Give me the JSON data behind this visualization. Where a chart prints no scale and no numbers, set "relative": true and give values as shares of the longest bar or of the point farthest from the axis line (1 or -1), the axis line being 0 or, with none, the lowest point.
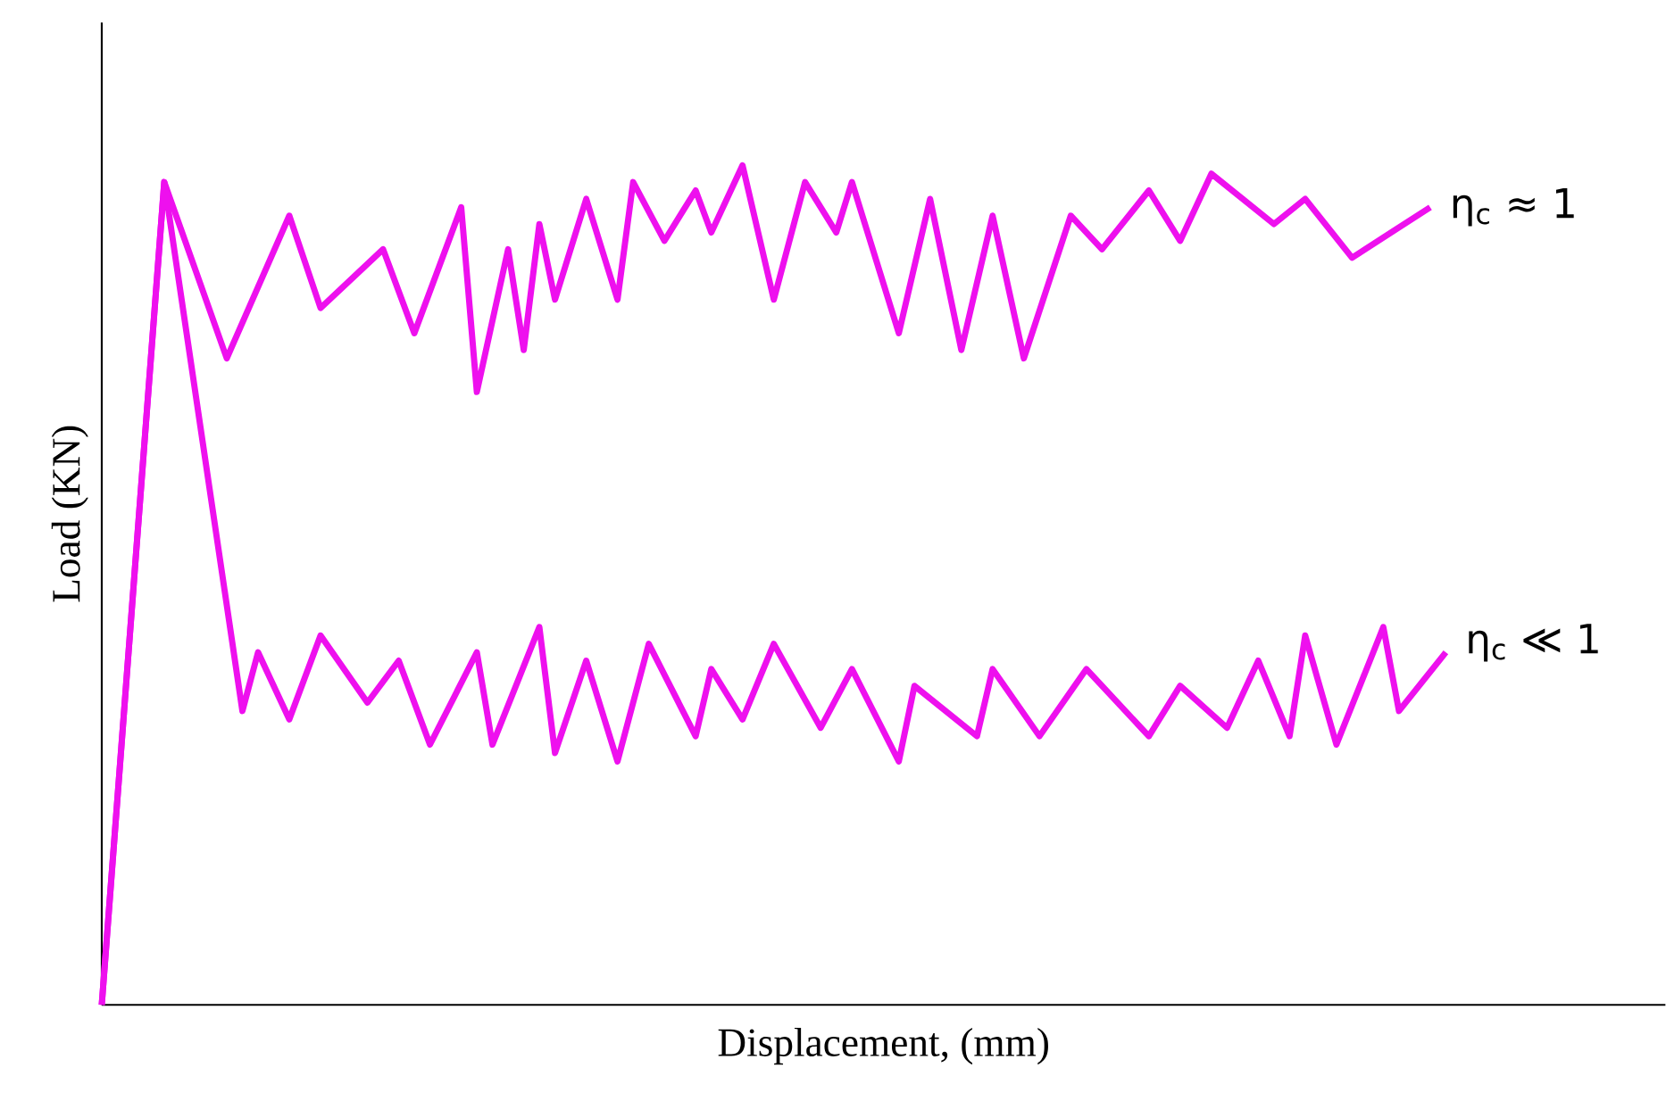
{
  "chart_data": {
    "type": "line",
    "relative": true,
    "xlabel": "Displacement, (mm)",
    "ylabel": "Load (KN)",
    "categories": [
      null,
      null,
      null,
      null,
      null,
      null,
      null,
      null,
      null,
      null,
      null,
      null,
      null,
      null,
      null,
      null,
      null,
      null,
      null,
      null,
      null,
      null,
      null,
      null,
      null,
      null,
      null,
      null,
      null,
      null,
      null,
      null,
      null,
      null,
      null,
      null,
      null,
      null,
      null,
      null,
      null,
      null,
      null,
      null,
      null,
      null,
      null,
      null,
      null,
      null,
      null,
      null,
      null,
      null,
      null,
      null,
      null,
      null,
      null,
      null,
      null,
      null,
      null,
      null,
      null,
      null,
      null,
      null,
      null,
      null,
      null,
      null,
      null,
      null,
      null,
      null,
      null,
      null,
      null,
      null,
      null,
      null,
      null,
      null,
      null,
      null,
      null
    ],
    "series": [
      {
        "name": "η$_{c}$ ≈ 1",
        "color": "#ee10ee",
        "values": [
          0,
          null,
          null,
          null,
          0.98,
          null,
          null,
          null,
          0.77,
          null,
          null,
          null,
          0.94,
          null,
          0.83,
          null,
          null,
          null,
          0.9,
          null,
          0.8,
          null,
          null,
          0.95,
          0.73,
          null,
          0.9,
          0.78,
          0.93,
          0.84,
          null,
          0.96,
          null,
          0.84,
          0.98,
          null,
          0.91,
          null,
          0.97,
          0.92,
          null,
          1,
          null,
          0.84,
          null,
          0.98,
          null,
          0.92,
          0.98,
          null,
          null,
          0.8,
          null,
          0.96,
          null,
          0.78,
          null,
          0.94,
          null,
          0.77,
          null,
          null,
          0.94,
          null,
          0.9,
          null,
          null,
          0.97,
          null,
          0.91,
          null,
          0.99,
          null,
          null,
          null,
          0.93,
          null,
          0.96,
          null,
          null,
          0.89,
          null,
          null,
          null,
          null,
          0.95,
          null
        ]
      },
      {
        "name": "η$_{c}$ ≪ 1",
        "color": "#ee10ee",
        "values": [
          0,
          null,
          null,
          null,
          0.98,
          null,
          null,
          null,
          null,
          0.35,
          0.42,
          null,
          0.34,
          null,
          0.44,
          null,
          null,
          0.36,
          null,
          0.41,
          null,
          0.31,
          null,
          null,
          0.42,
          0.31,
          null,
          null,
          0.45,
          0.3,
          null,
          0.41,
          null,
          0.29,
          null,
          0.43,
          null,
          null,
          0.32,
          0.4,
          null,
          0.34,
          null,
          0.43,
          null,
          null,
          0.33,
          null,
          0.4,
          null,
          null,
          0.29,
          0.38,
          null,
          null,
          null,
          0.32,
          0.4,
          null,
          null,
          0.32,
          null,
          null,
          0.4,
          null,
          null,
          null,
          0.32,
          null,
          0.38,
          null,
          null,
          0.33,
          null,
          0.41,
          null,
          0.32,
          0.44,
          null,
          0.31,
          null,
          null,
          0.45,
          0.35,
          null,
          null,
          0.42
        ]
      }
    ]
  }
}
